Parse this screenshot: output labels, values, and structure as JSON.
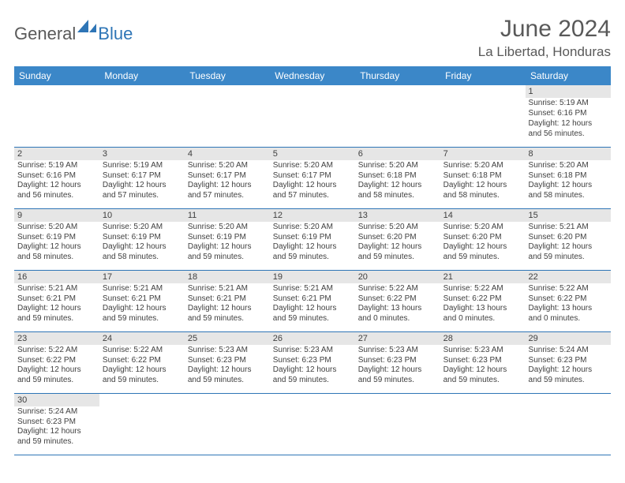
{
  "logo": {
    "word1": "General",
    "word2": "Blue"
  },
  "title": "June 2024",
  "location": "La Libertad, Honduras",
  "day_headers": [
    "Sunday",
    "Monday",
    "Tuesday",
    "Wednesday",
    "Thursday",
    "Friday",
    "Saturday"
  ],
  "colors": {
    "header_bg": "#3b87c8",
    "header_text": "#ffffff",
    "rule": "#2e75b6",
    "daynum_bg": "#e6e6e6",
    "text": "#404040",
    "title_text": "#595959"
  },
  "weeks": [
    [
      null,
      null,
      null,
      null,
      null,
      null,
      {
        "n": "1",
        "sunrise": "Sunrise: 5:19 AM",
        "sunset": "Sunset: 6:16 PM",
        "daylight": "Daylight: 12 hours and 56 minutes."
      }
    ],
    [
      {
        "n": "2",
        "sunrise": "Sunrise: 5:19 AM",
        "sunset": "Sunset: 6:16 PM",
        "daylight": "Daylight: 12 hours and 56 minutes."
      },
      {
        "n": "3",
        "sunrise": "Sunrise: 5:19 AM",
        "sunset": "Sunset: 6:17 PM",
        "daylight": "Daylight: 12 hours and 57 minutes."
      },
      {
        "n": "4",
        "sunrise": "Sunrise: 5:20 AM",
        "sunset": "Sunset: 6:17 PM",
        "daylight": "Daylight: 12 hours and 57 minutes."
      },
      {
        "n": "5",
        "sunrise": "Sunrise: 5:20 AM",
        "sunset": "Sunset: 6:17 PM",
        "daylight": "Daylight: 12 hours and 57 minutes."
      },
      {
        "n": "6",
        "sunrise": "Sunrise: 5:20 AM",
        "sunset": "Sunset: 6:18 PM",
        "daylight": "Daylight: 12 hours and 58 minutes."
      },
      {
        "n": "7",
        "sunrise": "Sunrise: 5:20 AM",
        "sunset": "Sunset: 6:18 PM",
        "daylight": "Daylight: 12 hours and 58 minutes."
      },
      {
        "n": "8",
        "sunrise": "Sunrise: 5:20 AM",
        "sunset": "Sunset: 6:18 PM",
        "daylight": "Daylight: 12 hours and 58 minutes."
      }
    ],
    [
      {
        "n": "9",
        "sunrise": "Sunrise: 5:20 AM",
        "sunset": "Sunset: 6:19 PM",
        "daylight": "Daylight: 12 hours and 58 minutes."
      },
      {
        "n": "10",
        "sunrise": "Sunrise: 5:20 AM",
        "sunset": "Sunset: 6:19 PM",
        "daylight": "Daylight: 12 hours and 58 minutes."
      },
      {
        "n": "11",
        "sunrise": "Sunrise: 5:20 AM",
        "sunset": "Sunset: 6:19 PM",
        "daylight": "Daylight: 12 hours and 59 minutes."
      },
      {
        "n": "12",
        "sunrise": "Sunrise: 5:20 AM",
        "sunset": "Sunset: 6:19 PM",
        "daylight": "Daylight: 12 hours and 59 minutes."
      },
      {
        "n": "13",
        "sunrise": "Sunrise: 5:20 AM",
        "sunset": "Sunset: 6:20 PM",
        "daylight": "Daylight: 12 hours and 59 minutes."
      },
      {
        "n": "14",
        "sunrise": "Sunrise: 5:20 AM",
        "sunset": "Sunset: 6:20 PM",
        "daylight": "Daylight: 12 hours and 59 minutes."
      },
      {
        "n": "15",
        "sunrise": "Sunrise: 5:21 AM",
        "sunset": "Sunset: 6:20 PM",
        "daylight": "Daylight: 12 hours and 59 minutes."
      }
    ],
    [
      {
        "n": "16",
        "sunrise": "Sunrise: 5:21 AM",
        "sunset": "Sunset: 6:21 PM",
        "daylight": "Daylight: 12 hours and 59 minutes."
      },
      {
        "n": "17",
        "sunrise": "Sunrise: 5:21 AM",
        "sunset": "Sunset: 6:21 PM",
        "daylight": "Daylight: 12 hours and 59 minutes."
      },
      {
        "n": "18",
        "sunrise": "Sunrise: 5:21 AM",
        "sunset": "Sunset: 6:21 PM",
        "daylight": "Daylight: 12 hours and 59 minutes."
      },
      {
        "n": "19",
        "sunrise": "Sunrise: 5:21 AM",
        "sunset": "Sunset: 6:21 PM",
        "daylight": "Daylight: 12 hours and 59 minutes."
      },
      {
        "n": "20",
        "sunrise": "Sunrise: 5:22 AM",
        "sunset": "Sunset: 6:22 PM",
        "daylight": "Daylight: 13 hours and 0 minutes."
      },
      {
        "n": "21",
        "sunrise": "Sunrise: 5:22 AM",
        "sunset": "Sunset: 6:22 PM",
        "daylight": "Daylight: 13 hours and 0 minutes."
      },
      {
        "n": "22",
        "sunrise": "Sunrise: 5:22 AM",
        "sunset": "Sunset: 6:22 PM",
        "daylight": "Daylight: 13 hours and 0 minutes."
      }
    ],
    [
      {
        "n": "23",
        "sunrise": "Sunrise: 5:22 AM",
        "sunset": "Sunset: 6:22 PM",
        "daylight": "Daylight: 12 hours and 59 minutes."
      },
      {
        "n": "24",
        "sunrise": "Sunrise: 5:22 AM",
        "sunset": "Sunset: 6:22 PM",
        "daylight": "Daylight: 12 hours and 59 minutes."
      },
      {
        "n": "25",
        "sunrise": "Sunrise: 5:23 AM",
        "sunset": "Sunset: 6:23 PM",
        "daylight": "Daylight: 12 hours and 59 minutes."
      },
      {
        "n": "26",
        "sunrise": "Sunrise: 5:23 AM",
        "sunset": "Sunset: 6:23 PM",
        "daylight": "Daylight: 12 hours and 59 minutes."
      },
      {
        "n": "27",
        "sunrise": "Sunrise: 5:23 AM",
        "sunset": "Sunset: 6:23 PM",
        "daylight": "Daylight: 12 hours and 59 minutes."
      },
      {
        "n": "28",
        "sunrise": "Sunrise: 5:23 AM",
        "sunset": "Sunset: 6:23 PM",
        "daylight": "Daylight: 12 hours and 59 minutes."
      },
      {
        "n": "29",
        "sunrise": "Sunrise: 5:24 AM",
        "sunset": "Sunset: 6:23 PM",
        "daylight": "Daylight: 12 hours and 59 minutes."
      }
    ],
    [
      {
        "n": "30",
        "sunrise": "Sunrise: 5:24 AM",
        "sunset": "Sunset: 6:23 PM",
        "daylight": "Daylight: 12 hours and 59 minutes."
      },
      null,
      null,
      null,
      null,
      null,
      null
    ]
  ]
}
